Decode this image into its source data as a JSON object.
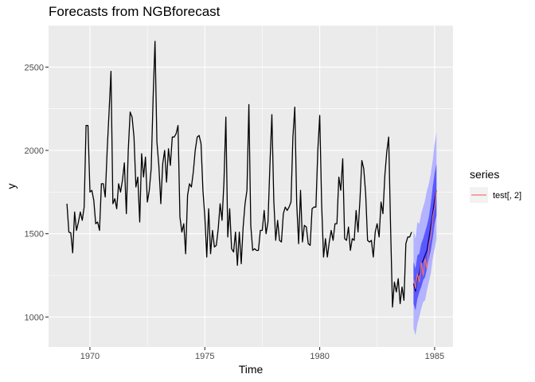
{
  "chart_data": {
    "type": "line",
    "title": "Forecasts from NGBforecast",
    "xlabel": "Time",
    "ylabel": "y",
    "xlim": [
      1968.2,
      1985.8
    ],
    "ylim": [
      820,
      2750
    ],
    "x_ticks": [
      1970,
      1975,
      1980,
      1985
    ],
    "y_ticks": [
      1000,
      1500,
      2000,
      2500
    ],
    "grid": true,
    "legend": {
      "title": "series",
      "position": "right",
      "entries": [
        {
          "label": "test[, 2]",
          "color": "#f8766d"
        }
      ]
    },
    "colors": {
      "history": "#000000",
      "forecast_mean": "#000080",
      "interval_80": "#5959ff",
      "interval_95": "#b3b3ff",
      "test": "#f8766d"
    },
    "series": [
      {
        "name": "history",
        "start": 1969.0,
        "step": 0.0833333,
        "values": [
          1680,
          1510,
          1505,
          1385,
          1630,
          1520,
          1570,
          1630,
          1580,
          1660,
          2150,
          2150,
          1750,
          1760,
          1700,
          1560,
          1570,
          1520,
          1800,
          1800,
          1720,
          2000,
          2230,
          2475,
          1680,
          1710,
          1650,
          1800,
          1750,
          1820,
          1925,
          1620,
          2000,
          2230,
          2200,
          2080,
          1780,
          1840,
          1570,
          1980,
          1840,
          1960,
          1690,
          1760,
          1890,
          2310,
          2655,
          2050,
          1910,
          1680,
          1920,
          2000,
          1810,
          2010,
          1910,
          2080,
          2080,
          2100,
          2150,
          1600,
          1510,
          1560,
          1380,
          1730,
          1800,
          1780,
          1870,
          2000,
          2080,
          2090,
          2040,
          1760,
          1600,
          1360,
          1650,
          1380,
          1520,
          1420,
          1430,
          1530,
          1680,
          1580,
          1810,
          2200,
          1480,
          1650,
          1410,
          1390,
          1510,
          1310,
          1510,
          1320,
          1540,
          1680,
          1760,
          2275,
          1550,
          1400,
          1410,
          1400,
          1400,
          1520,
          1520,
          1640,
          1500,
          1570,
          1920,
          2215,
          1700,
          1460,
          1580,
          1460,
          1450,
          1620,
          1660,
          1640,
          1660,
          1690,
          2080,
          2260,
          1680,
          1440,
          1760,
          1450,
          1550,
          1540,
          1440,
          1430,
          1650,
          1660,
          1660,
          2000,
          2210,
          1680,
          1360,
          1470,
          1360,
          1450,
          1520,
          1460,
          1560,
          1560,
          1840,
          1760,
          1950,
          1470,
          1460,
          1540,
          1400,
          1470,
          1460,
          1640,
          1510,
          1700,
          1940,
          1890,
          1740,
          1460,
          1450,
          1460,
          1360,
          1510,
          1560,
          1480,
          1690,
          1620,
          1850,
          1990,
          2080,
          1540,
          1060,
          1210,
          1150,
          1230,
          1080,
          1180,
          1100,
          1440,
          1480,
          1480,
          1510
        ]
      },
      {
        "name": "forecast",
        "start": 1984.0833,
        "step": 0.0833333,
        "mean": [
          1200,
          1155,
          1240,
          1260,
          1320,
          1340,
          1370,
          1400,
          1470,
          1540,
          1620,
          1700,
          1760
        ],
        "lo80": [
          1080,
          1040,
          1110,
          1150,
          1180,
          1220,
          1240,
          1290,
          1350,
          1400,
          1470,
          1560,
          1610
        ],
        "hi80": [
          1330,
          1290,
          1370,
          1380,
          1440,
          1470,
          1510,
          1550,
          1600,
          1680,
          1780,
          1860,
          1920
        ],
        "lo95": [
          930,
          890,
          960,
          1000,
          1050,
          1090,
          1100,
          1160,
          1210,
          1260,
          1350,
          1410,
          1470
        ],
        "hi95": [
          1520,
          1470,
          1570,
          1560,
          1620,
          1660,
          1700,
          1760,
          1800,
          1860,
          1940,
          2040,
          2110
        ]
      },
      {
        "name": "test[, 2]",
        "start": 1984.0833,
        "step": 0.0833333,
        "values": [
          1230,
          1170,
          1260,
          1210,
          1330,
          1250,
          1350,
          1290,
          1430,
          1480,
          1600,
          1660,
          1760
        ]
      }
    ]
  }
}
